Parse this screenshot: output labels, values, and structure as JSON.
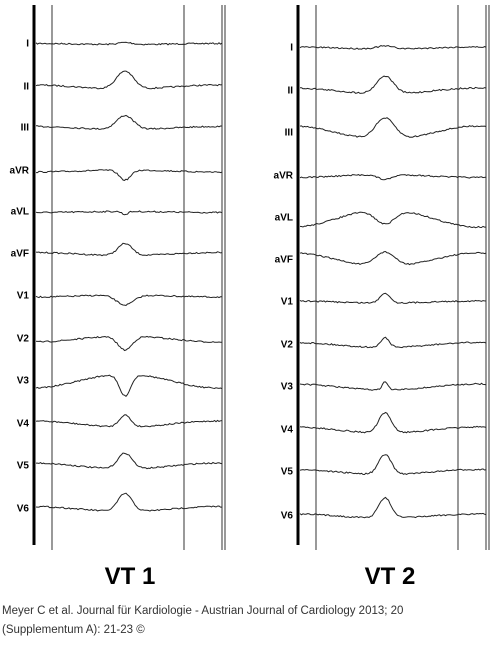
{
  "panels": [
    {
      "title": "VT 1",
      "leads": [
        "I",
        "II",
        "III",
        "aVR",
        "aVL",
        "aVF",
        "V1",
        "V2",
        "V3",
        "V4",
        "V5",
        "V6"
      ]
    },
    {
      "title": "VT 2",
      "leads": [
        "I",
        "II",
        "III",
        "aVR",
        "aVL",
        "aVF",
        "V1",
        "V2",
        "V3",
        "V4",
        "V5",
        "V6"
      ]
    }
  ],
  "caption": [
    "Meyer C et al. Journal für Kardiologie - Austrian Journal of Cardiology 2013; 20",
    "(Supplementum A):  21-23 ©"
  ]
}
